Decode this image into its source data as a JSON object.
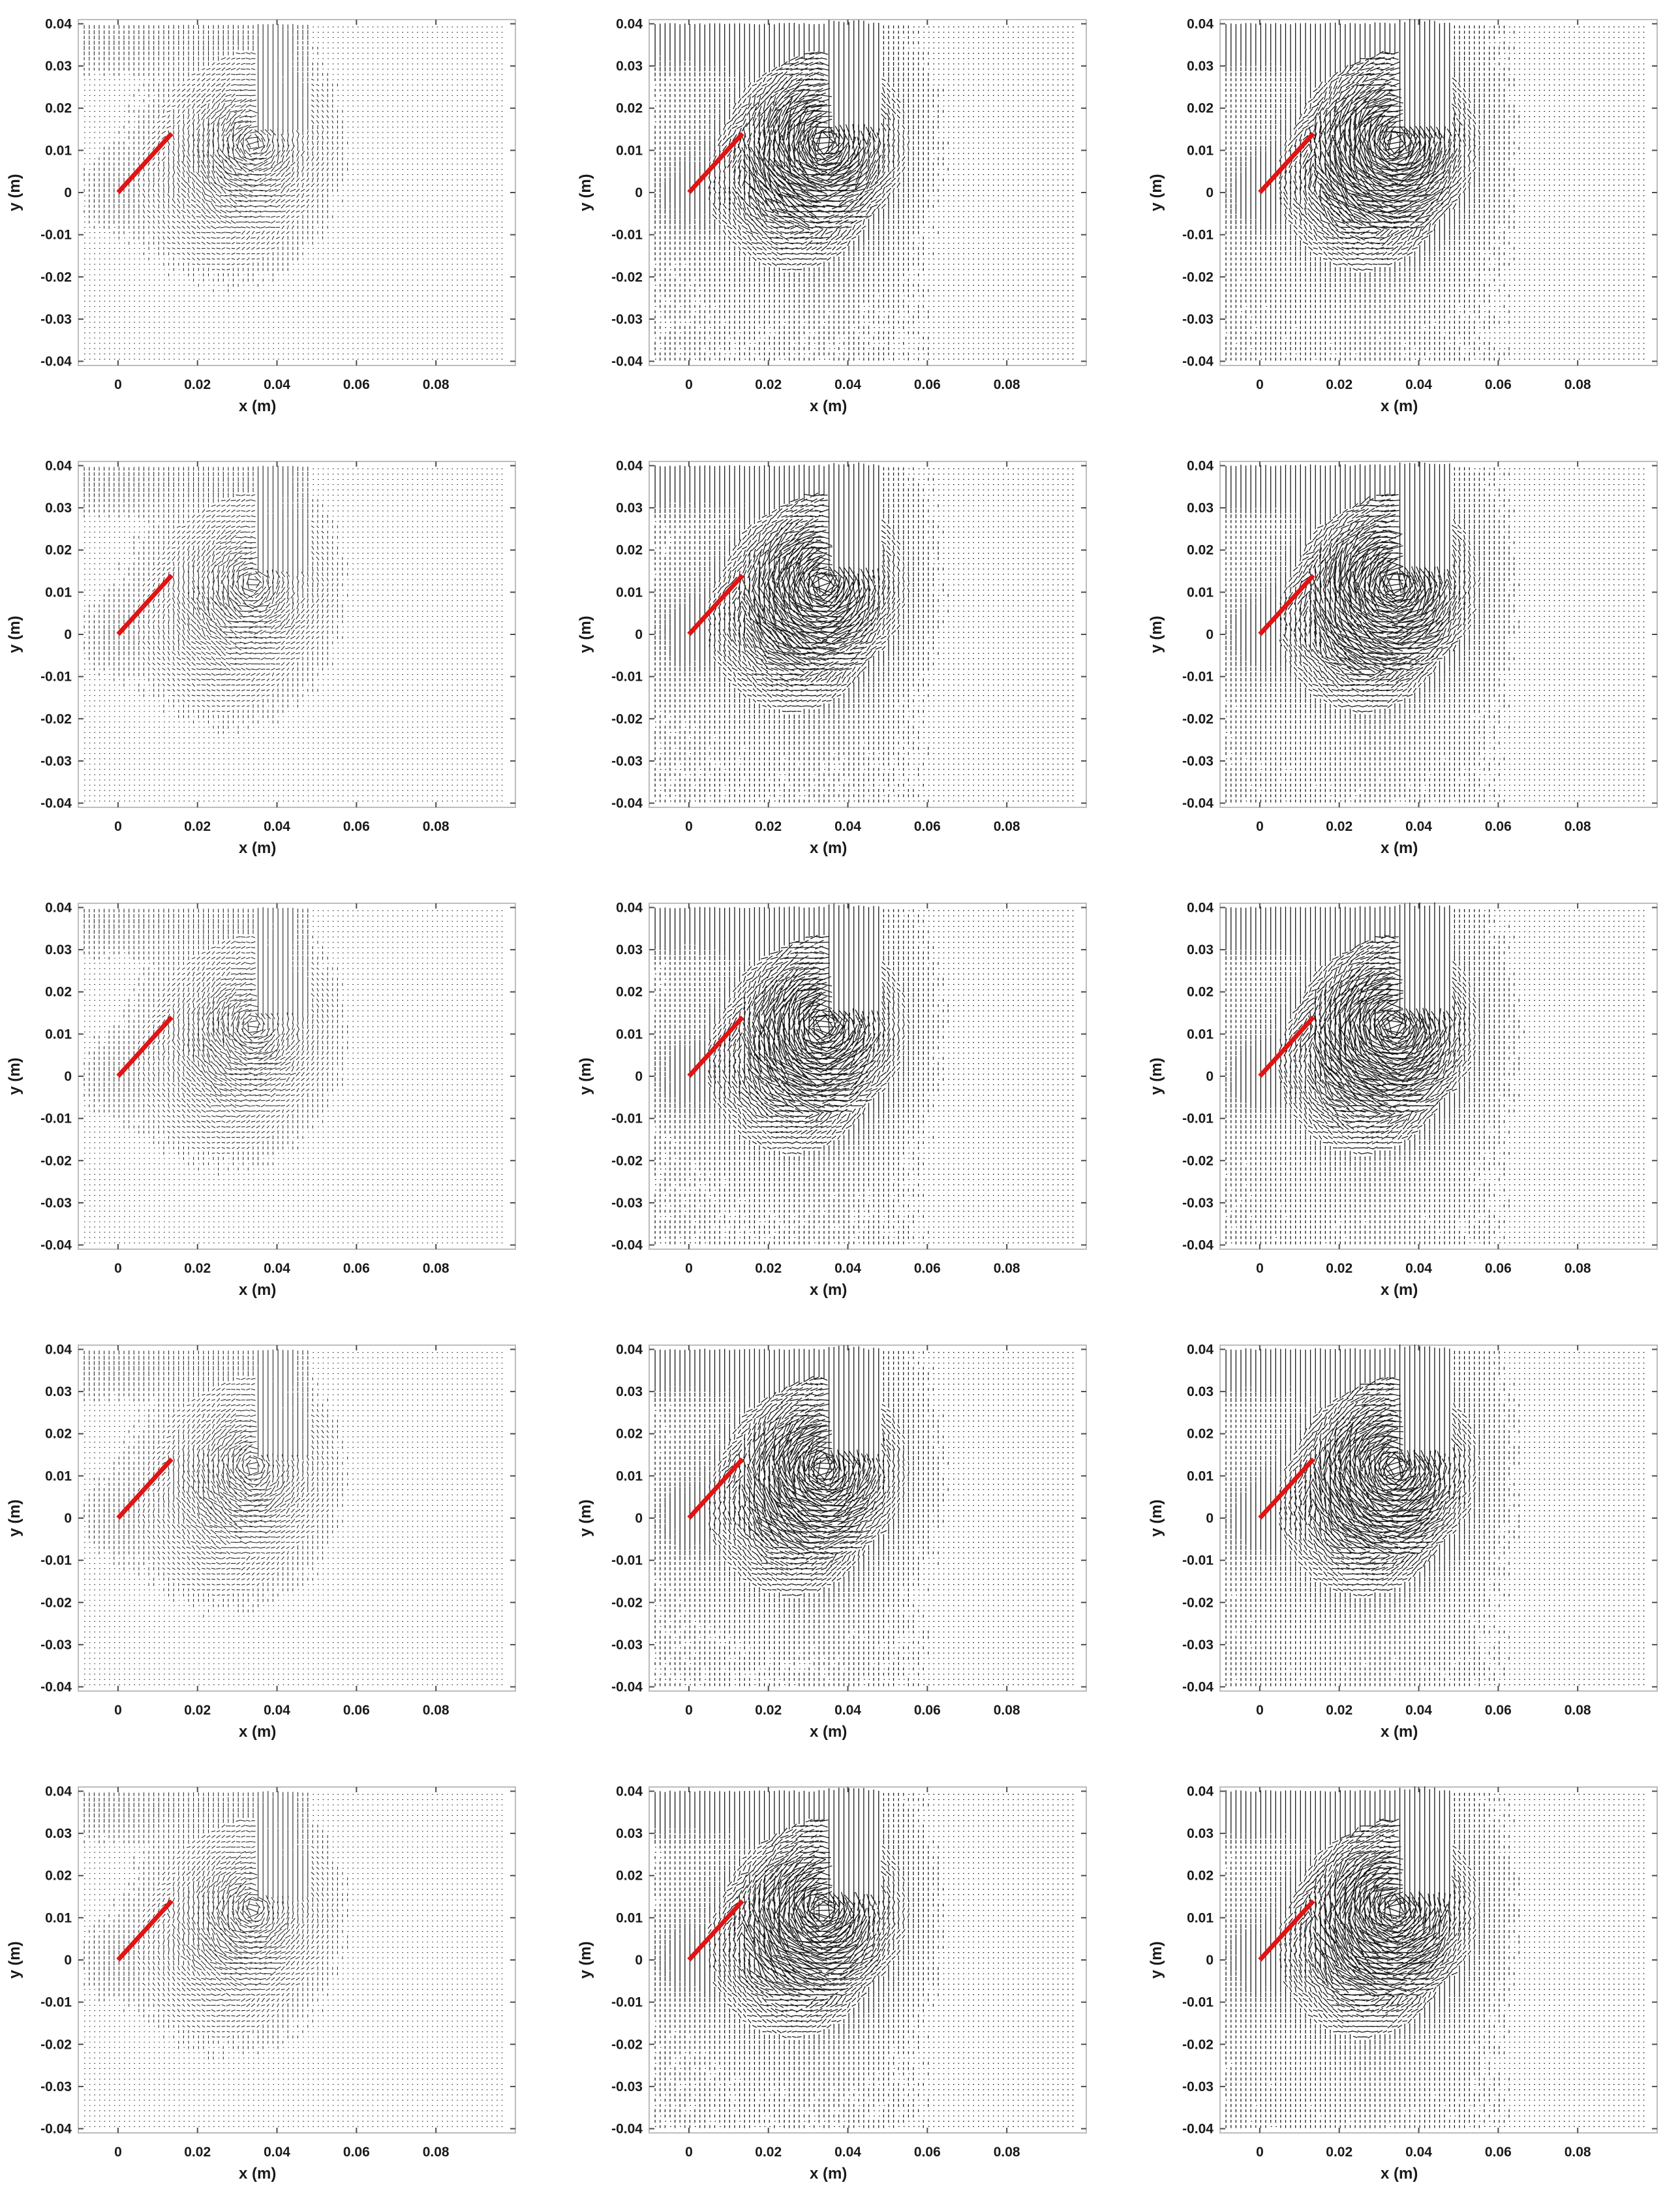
{
  "chart_data": {
    "type": "scatter",
    "layout": {
      "rows": 5,
      "cols": 3
    },
    "xlabel": "x (m)",
    "ylabel": "y (m)",
    "xlim": [
      -0.01,
      0.1
    ],
    "ylim": [
      -0.041,
      0.041
    ],
    "xticks": [
      0,
      0.02,
      0.04,
      0.06,
      0.08
    ],
    "xtick_labels": [
      "0",
      "0.02",
      "0.04",
      "0.06",
      "0.08"
    ],
    "yticks": [
      -0.04,
      -0.03,
      -0.02,
      -0.01,
      0,
      0.01,
      0.02,
      0.03,
      0.04
    ],
    "ytick_labels": [
      "-0.04",
      "-0.03",
      "-0.02",
      "-0.01",
      "0",
      "0.01",
      "0.02",
      "0.03",
      "0.04"
    ],
    "grid": false,
    "legend": "none",
    "plate_color": "#e01414",
    "vector_color": "#000000",
    "plate_segment": {
      "x": [
        0,
        0.0135
      ],
      "y": [
        0,
        0.014
      ]
    },
    "column_flow_intensity": [
      0.35,
      1.0,
      1.15
    ],
    "vortex_centers": [
      {
        "x": 0.03,
        "y": 0.01
      },
      {
        "x": 0.026,
        "y": 0.003
      },
      {
        "x": 0.034,
        "y": 0.012
      }
    ]
  }
}
